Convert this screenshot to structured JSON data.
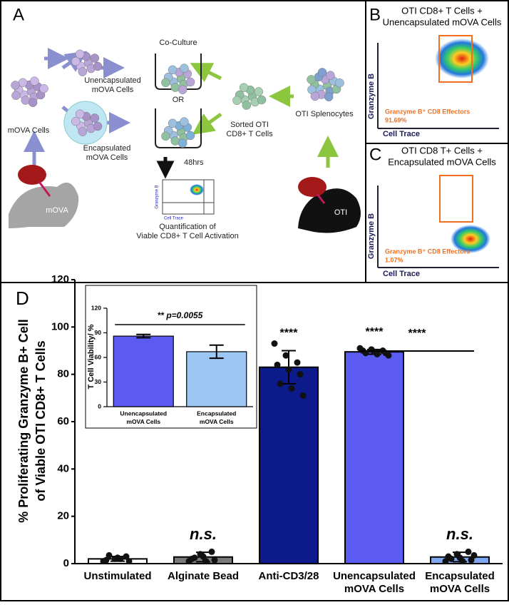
{
  "panel_a": {
    "letter": "A",
    "co_culture": "Co-Culture",
    "unencapsulated": [
      "Unencapsulated",
      "mOVA Cells"
    ],
    "mova_cells": "mOVA Cells",
    "encapsulated": [
      "Encapsulated",
      "mOVA Cells"
    ],
    "or": "OR",
    "time": "48hrs",
    "sorted": [
      "Sorted OTI",
      "CD8+ T Cells"
    ],
    "splenocytes": "OTI Splenocytes",
    "mouse_mova": "mOVA",
    "mouse_oti": "OTI",
    "mini_y": "Granzyme B",
    "mini_x": "Cell Trace",
    "quantification": [
      "Quantification of",
      "Viable CD8+ T Cell Activation"
    ]
  },
  "panel_b": {
    "letter": "B",
    "title": [
      "OTI CD8+ T Cells +",
      "Unencapsulated mOVA Cells"
    ],
    "y_label": "Granzyme B",
    "x_label": "Cell Trace",
    "gate_label": "Granzyme B⁺ CD8 Effectors",
    "gate_value": "91.69%"
  },
  "panel_c": {
    "letter": "C",
    "title": [
      "OTI CD8 T+ Cells +",
      "Encapsulated mOVA Cells"
    ],
    "y_label": "Granzyme B",
    "x_label": "Cell Trace",
    "gate_label": "Granzyme B⁺ CD8 Effectors",
    "gate_value": "1.07%"
  },
  "chart_data": [
    {
      "type": "bar",
      "letter": "D",
      "ylabel": [
        "% Proliferating Granzyme B+ Cell",
        "of Viable OTI CD8+ T Cells"
      ],
      "categories": [
        [
          "Unstimulated"
        ],
        [
          "Alginate Bead"
        ],
        [
          "Anti-CD3/28"
        ],
        [
          "Unencapsulated",
          "mOVA Cells"
        ],
        [
          "Encapsulated",
          "mOVA Cells"
        ]
      ],
      "values": [
        2,
        2.8,
        83,
        89.5,
        2.8
      ],
      "errors": [
        1,
        2,
        7,
        1,
        2
      ],
      "colors": [
        "#ffffff",
        "#7a7a7a",
        "#0c1a8c",
        "#5b5bf2",
        "#80a8f2"
      ],
      "points": [
        [
          1,
          2,
          3,
          1.5,
          2.5,
          1,
          3.5,
          2
        ],
        [
          1,
          4,
          5,
          2,
          3,
          1.5,
          2.5,
          1
        ],
        [
          93,
          88,
          85,
          84,
          82,
          80,
          76,
          74,
          71
        ],
        [
          91,
          90.5,
          90,
          90,
          89.5,
          89,
          89,
          88.5,
          88
        ],
        [
          1,
          4,
          5,
          3,
          2.5,
          1.5,
          2,
          1,
          3.5
        ]
      ],
      "bar_labels": [
        null,
        "n.s.",
        "****",
        "****",
        "n.s."
      ],
      "comparison_label": "****",
      "ylim": [
        0,
        120
      ],
      "yticks": [
        0,
        20,
        40,
        60,
        80,
        100,
        120
      ]
    },
    {
      "type": "bar",
      "ylabel": "T Cell Viability/ %",
      "categories": [
        [
          "Unencapsulated",
          "mOVA Cells"
        ],
        [
          "Encapsulated",
          "mOVA Cells"
        ]
      ],
      "values": [
        86,
        67
      ],
      "errors": [
        2,
        8
      ],
      "colors": [
        "#5b5bf2",
        "#9cc6f4"
      ],
      "comparison_label": "** p=0.0055",
      "ylim": [
        0,
        120
      ],
      "yticks": [
        0,
        30,
        60,
        90,
        120
      ]
    }
  ]
}
